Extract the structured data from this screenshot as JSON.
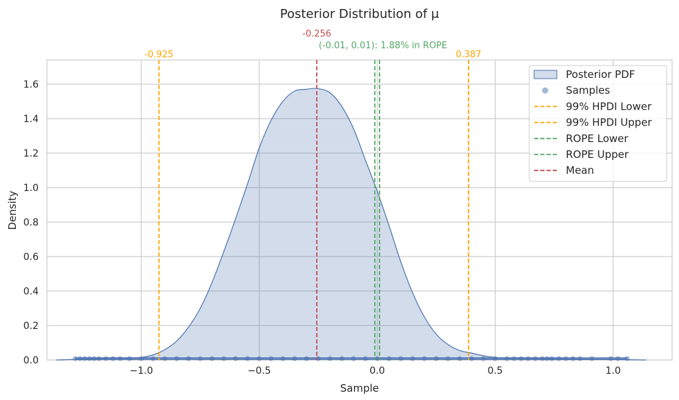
{
  "chart_data": {
    "type": "area",
    "title": "Posterior Distribution of  μ",
    "xlabel": "Sample",
    "ylabel": "Density",
    "xlim": [
      -1.4,
      1.25
    ],
    "ylim": [
      0,
      1.74
    ],
    "grid": true,
    "legend_position": "top-right",
    "x_ticks": [
      {
        "value": -1.0,
        "label": "−1.0"
      },
      {
        "value": -0.5,
        "label": "−0.5"
      },
      {
        "value": 0.0,
        "label": "0.0"
      },
      {
        "value": 0.5,
        "label": "0.5"
      },
      {
        "value": 1.0,
        "label": "1.0"
      }
    ],
    "y_ticks": [
      {
        "value": 0.0,
        "label": "0.0"
      },
      {
        "value": 0.2,
        "label": "0.2"
      },
      {
        "value": 0.4,
        "label": "0.4"
      },
      {
        "value": 0.6,
        "label": "0.6"
      },
      {
        "value": 0.8,
        "label": "0.8"
      },
      {
        "value": 1.0,
        "label": "1.0"
      },
      {
        "value": 1.2,
        "label": "1.2"
      },
      {
        "value": 1.4,
        "label": "1.4"
      },
      {
        "value": 1.6,
        "label": "1.6"
      }
    ],
    "pdf": {
      "name": "Posterior PDF",
      "color": "#4c72b0",
      "x": [
        -1.36,
        -1.25,
        -1.15,
        -1.05,
        -1.0,
        -0.95,
        -0.9,
        -0.85,
        -0.8,
        -0.75,
        -0.7,
        -0.65,
        -0.6,
        -0.55,
        -0.5,
        -0.45,
        -0.4,
        -0.35,
        -0.3,
        -0.256,
        -0.2,
        -0.15,
        -0.1,
        -0.05,
        0.0,
        0.05,
        0.1,
        0.15,
        0.2,
        0.25,
        0.3,
        0.35,
        0.4,
        0.45,
        0.5,
        0.55,
        0.6,
        0.7,
        0.85,
        1.0,
        1.14
      ],
      "y": [
        0.0,
        0.005,
        0.01,
        0.012,
        0.015,
        0.03,
        0.06,
        0.11,
        0.19,
        0.3,
        0.45,
        0.63,
        0.82,
        1.02,
        1.23,
        1.39,
        1.5,
        1.56,
        1.57,
        1.575,
        1.55,
        1.47,
        1.34,
        1.16,
        0.98,
        0.78,
        0.57,
        0.39,
        0.25,
        0.15,
        0.09,
        0.055,
        0.04,
        0.025,
        0.015,
        0.012,
        0.01,
        0.008,
        0.005,
        0.003,
        0.0
      ]
    },
    "samples": {
      "name": "Samples",
      "color": "#4c72b0",
      "values": [
        -1.28,
        -1.26,
        -1.24,
        -1.22,
        -1.2,
        -1.18,
        -1.15,
        -1.12,
        -1.09,
        -1.05,
        -1.0,
        -0.95,
        -0.9,
        -0.85,
        -0.8,
        -0.75,
        -0.7,
        -0.65,
        -0.6,
        -0.55,
        -0.5,
        -0.45,
        -0.4,
        -0.35,
        -0.3,
        -0.25,
        -0.2,
        -0.15,
        -0.1,
        -0.05,
        0.0,
        0.05,
        0.1,
        0.15,
        0.2,
        0.25,
        0.3,
        0.35,
        0.4,
        0.45,
        0.5,
        0.55,
        0.58,
        0.61,
        0.64,
        0.67,
        0.7,
        0.72,
        0.74,
        0.77,
        0.8,
        0.83,
        0.86,
        0.91,
        0.99,
        1.02,
        1.06
      ]
    },
    "vlines": [
      {
        "name": "99% HPDI Lower",
        "x": -0.925,
        "color": "#ffa500",
        "annotation": "-0.925"
      },
      {
        "name": "99% HPDI Upper",
        "x": 0.387,
        "color": "#ffa500",
        "annotation": "0.387"
      },
      {
        "name": "ROPE Lower",
        "x": -0.01,
        "color": "#55a868",
        "annotation": ""
      },
      {
        "name": "ROPE Upper",
        "x": 0.01,
        "color": "#55a868",
        "annotation": ""
      },
      {
        "name": "Mean",
        "x": -0.256,
        "color": "#c44e52",
        "annotation": "-0.256"
      }
    ],
    "rope_annotation": "(-0.01, 0.01): 1.88% in ROPE",
    "legend": [
      {
        "label": "Posterior PDF",
        "kind": "patch"
      },
      {
        "label": "Samples",
        "kind": "marker"
      },
      {
        "label": "99% HPDI Lower",
        "kind": "dash",
        "color": "#ffa500"
      },
      {
        "label": "99% HPDI Upper",
        "kind": "dash",
        "color": "#ffa500"
      },
      {
        "label": "ROPE Lower",
        "kind": "dash",
        "color": "#55a868"
      },
      {
        "label": "ROPE Upper",
        "kind": "dash",
        "color": "#55a868"
      },
      {
        "label": "Mean",
        "kind": "dash",
        "color": "#c44e52"
      }
    ]
  }
}
